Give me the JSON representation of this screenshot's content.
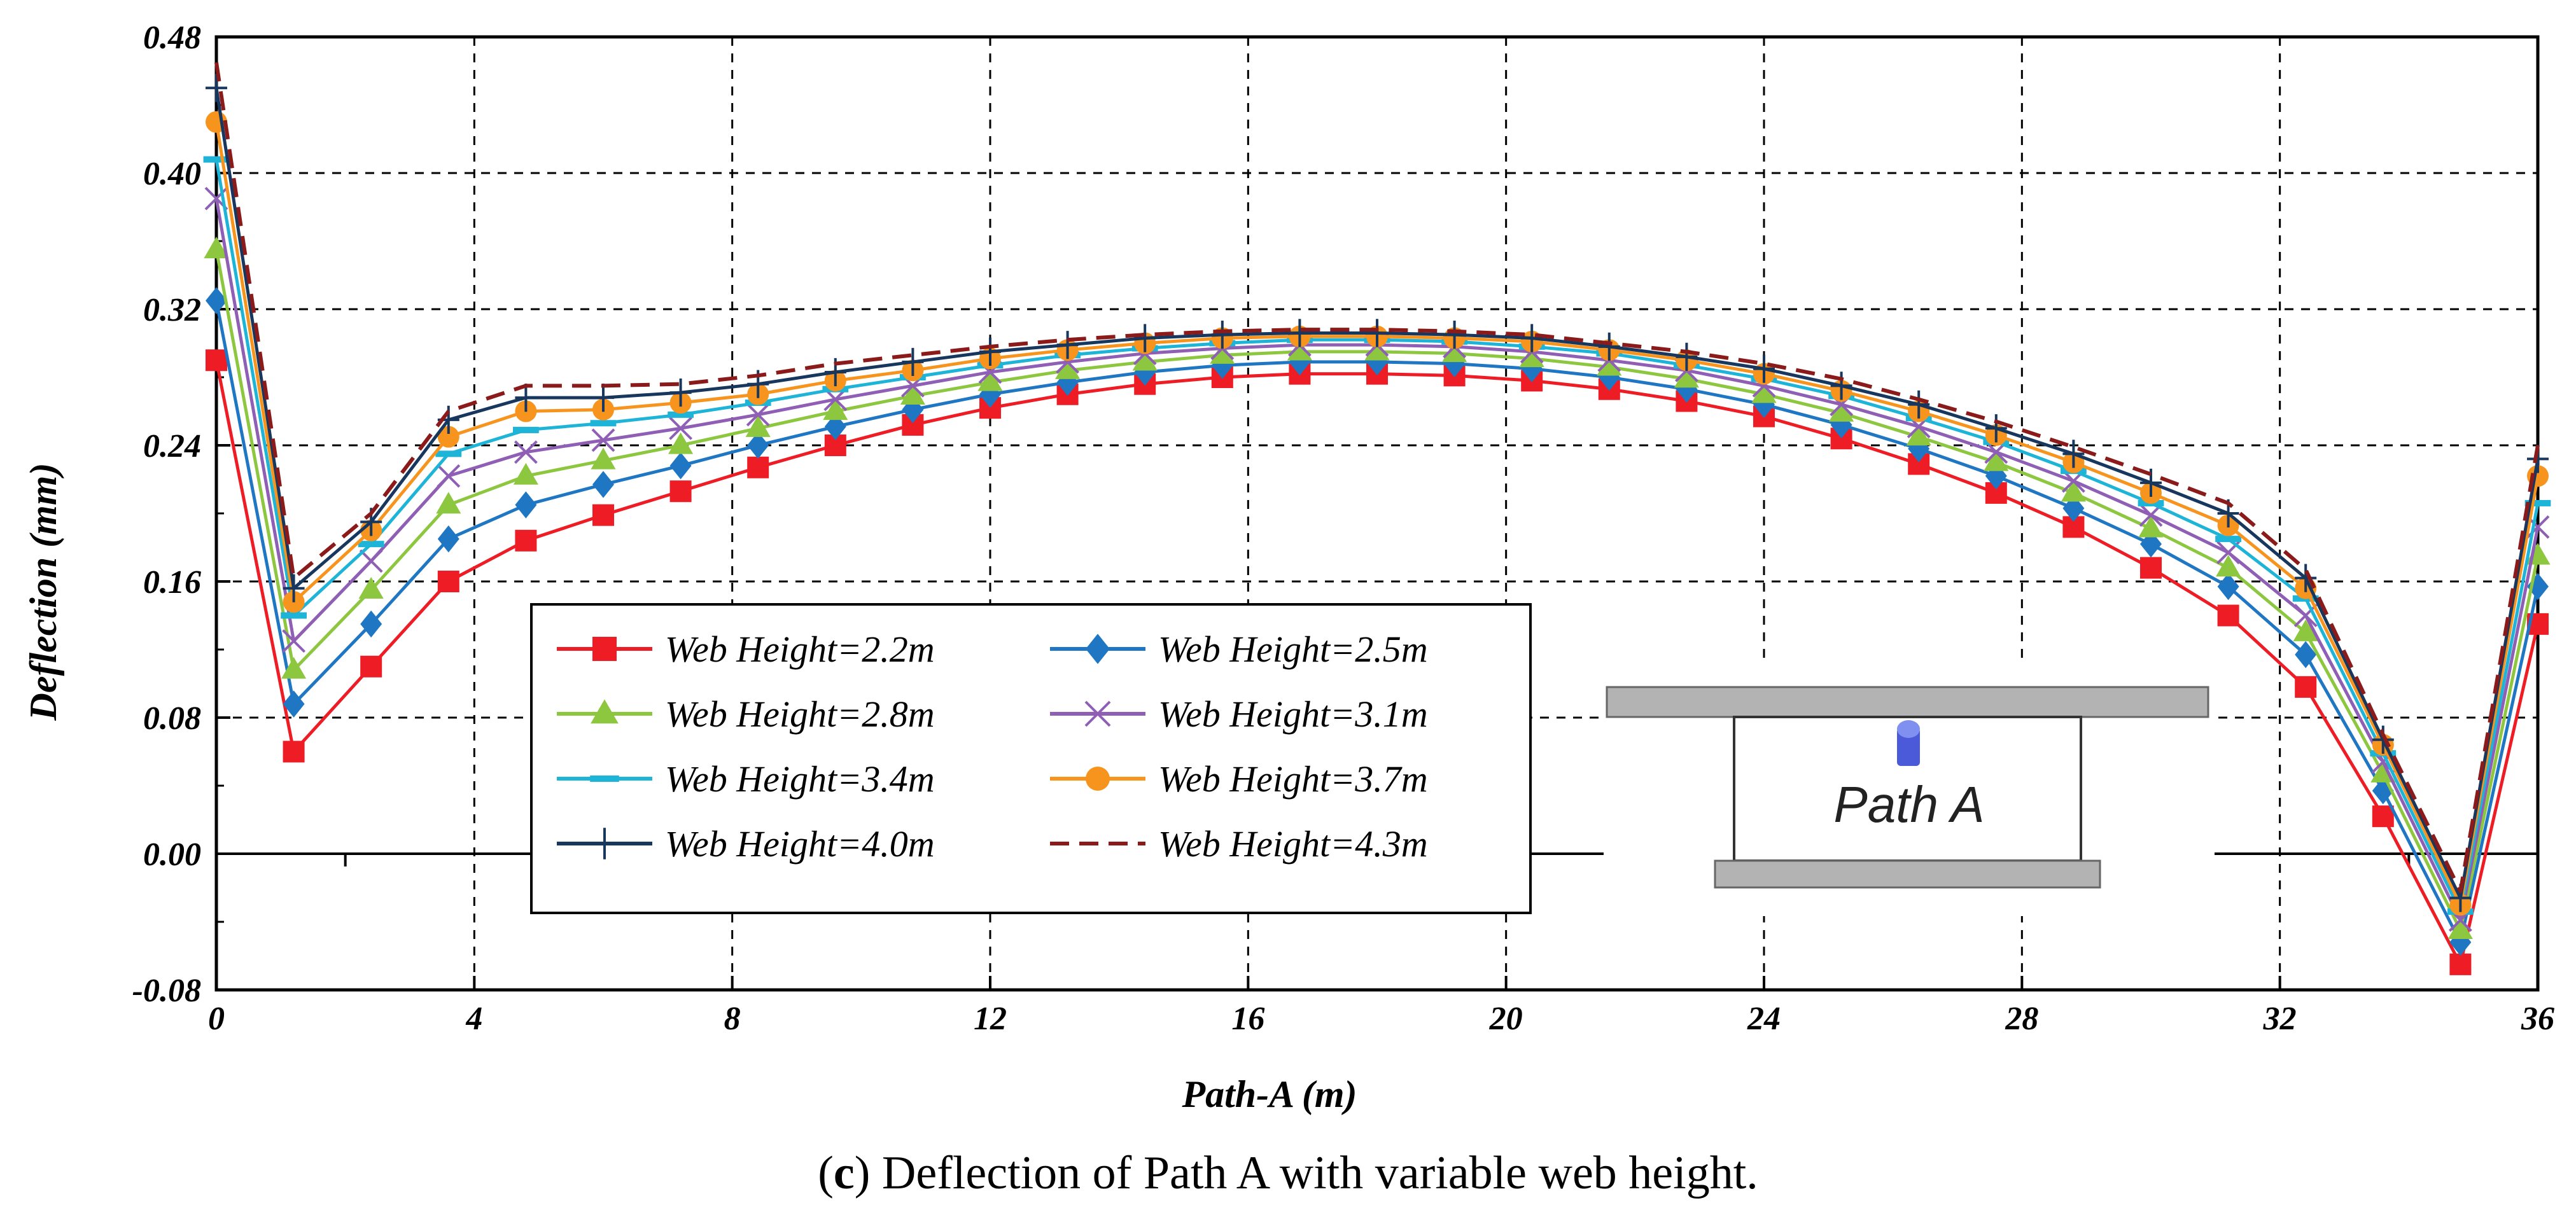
{
  "caption": {
    "label": "c",
    "text": " Deflection of Path A with variable web height."
  },
  "diagram": {
    "label": "Path A",
    "deck_color": "#b3b3b3",
    "pin_color": "#4a5ad8"
  },
  "chart_data": {
    "type": "line",
    "xlabel": "Path-A (m)",
    "ylabel": "Deflection (mm)",
    "xlim": [
      0,
      36
    ],
    "ylim": [
      -0.08,
      0.48
    ],
    "x_ticks": [
      "0",
      "4",
      "8",
      "12",
      "16",
      "20",
      "24",
      "28",
      "32",
      "36"
    ],
    "y_ticks": [
      "-0.08",
      "0.00",
      "0.08",
      "0.16",
      "0.24",
      "0.32",
      "0.40",
      "0.48"
    ],
    "grid": "dashed",
    "legend_position": "lower-center",
    "x": [
      0,
      1.2,
      2.4,
      3.6,
      4.8,
      6.0,
      7.2,
      8.4,
      9.6,
      10.8,
      12.0,
      13.2,
      14.4,
      15.6,
      16.8,
      18.0,
      19.2,
      20.4,
      21.6,
      22.8,
      24.0,
      25.2,
      26.4,
      27.6,
      28.8,
      30.0,
      31.2,
      32.4,
      33.6,
      34.8,
      36.0
    ],
    "series": [
      {
        "name": "Web Height=2.2m",
        "color": "#ee1c25",
        "marker": "square",
        "dash": false,
        "values": [
          0.29,
          0.06,
          0.11,
          0.16,
          0.184,
          0.199,
          0.213,
          0.227,
          0.24,
          0.252,
          0.262,
          0.27,
          0.276,
          0.28,
          0.282,
          0.282,
          0.281,
          0.278,
          0.273,
          0.266,
          0.257,
          0.244,
          0.229,
          0.212,
          0.192,
          0.168,
          0.14,
          0.098,
          0.022,
          -0.065,
          0.135
        ]
      },
      {
        "name": "Web Height=2.5m",
        "color": "#1f77c4",
        "marker": "diamond",
        "dash": false,
        "values": [
          0.325,
          0.088,
          0.135,
          0.185,
          0.205,
          0.217,
          0.228,
          0.24,
          0.251,
          0.261,
          0.27,
          0.277,
          0.283,
          0.287,
          0.289,
          0.289,
          0.288,
          0.285,
          0.28,
          0.273,
          0.264,
          0.252,
          0.238,
          0.222,
          0.203,
          0.182,
          0.157,
          0.117,
          0.037,
          -0.052,
          0.157
        ]
      },
      {
        "name": "Web Height=2.8m",
        "color": "#8dc63f",
        "marker": "triangle",
        "dash": false,
        "values": [
          0.355,
          0.108,
          0.155,
          0.205,
          0.222,
          0.231,
          0.24,
          0.25,
          0.26,
          0.269,
          0.277,
          0.284,
          0.289,
          0.293,
          0.295,
          0.295,
          0.294,
          0.291,
          0.286,
          0.279,
          0.27,
          0.259,
          0.245,
          0.23,
          0.212,
          0.191,
          0.168,
          0.13,
          0.047,
          -0.045,
          0.175
        ]
      },
      {
        "name": "Web Height=3.1m",
        "color": "#8e5fb5",
        "marker": "x",
        "dash": false,
        "values": [
          0.385,
          0.125,
          0.172,
          0.222,
          0.236,
          0.243,
          0.25,
          0.258,
          0.267,
          0.275,
          0.283,
          0.289,
          0.294,
          0.297,
          0.299,
          0.299,
          0.298,
          0.295,
          0.29,
          0.284,
          0.275,
          0.264,
          0.251,
          0.236,
          0.219,
          0.199,
          0.177,
          0.14,
          0.054,
          -0.039,
          0.192
        ]
      },
      {
        "name": "Web Height=3.4m",
        "color": "#1eb4d8",
        "marker": "dash",
        "dash": false,
        "values": [
          0.408,
          0.14,
          0.182,
          0.235,
          0.249,
          0.253,
          0.258,
          0.265,
          0.273,
          0.28,
          0.287,
          0.293,
          0.297,
          0.3,
          0.302,
          0.302,
          0.301,
          0.298,
          0.294,
          0.287,
          0.279,
          0.269,
          0.256,
          0.242,
          0.225,
          0.206,
          0.185,
          0.15,
          0.059,
          -0.034,
          0.206
        ]
      },
      {
        "name": "Web Height=3.7m",
        "color": "#f7941d",
        "marker": "circle",
        "dash": false,
        "values": [
          0.43,
          0.148,
          0.19,
          0.245,
          0.26,
          0.261,
          0.265,
          0.27,
          0.278,
          0.284,
          0.291,
          0.296,
          0.3,
          0.303,
          0.304,
          0.304,
          0.303,
          0.301,
          0.296,
          0.29,
          0.282,
          0.272,
          0.26,
          0.246,
          0.23,
          0.212,
          0.193,
          0.156,
          0.064,
          -0.03,
          0.222
        ]
      },
      {
        "name": "Web Height=4.0m",
        "color": "#17375e",
        "marker": "plus",
        "dash": false,
        "values": [
          0.45,
          0.156,
          0.195,
          0.255,
          0.268,
          0.268,
          0.271,
          0.276,
          0.283,
          0.289,
          0.295,
          0.299,
          0.303,
          0.305,
          0.306,
          0.306,
          0.305,
          0.303,
          0.298,
          0.292,
          0.285,
          0.275,
          0.264,
          0.25,
          0.235,
          0.218,
          0.2,
          0.162,
          0.067,
          -0.026,
          0.232
        ]
      },
      {
        "name": "Web Height=4.3m",
        "color": "#8b1a1a",
        "marker": "none",
        "dash": true,
        "values": [
          0.465,
          0.162,
          0.2,
          0.26,
          0.275,
          0.275,
          0.276,
          0.281,
          0.288,
          0.293,
          0.298,
          0.302,
          0.305,
          0.307,
          0.308,
          0.308,
          0.307,
          0.305,
          0.3,
          0.295,
          0.288,
          0.279,
          0.267,
          0.254,
          0.239,
          0.223,
          0.206,
          0.167,
          0.07,
          -0.022,
          0.24
        ]
      }
    ]
  }
}
